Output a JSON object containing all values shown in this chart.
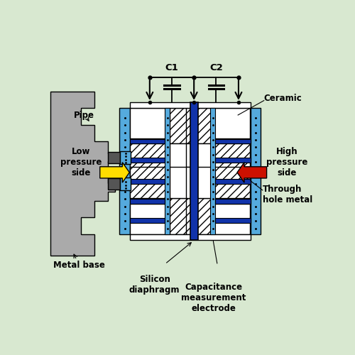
{
  "bg_color": "#d8e8d0",
  "white": "#ffffff",
  "black": "#000000",
  "blue_light": "#55aadd",
  "blue_dark": "#1133aa",
  "gray_metal": "#aaaaaa",
  "gray_dark": "#555555",
  "gray_pipe": "#999999",
  "yellow": "#ffdd00",
  "red": "#cc1100",
  "label_c1": "C1",
  "label_c2": "C2",
  "label_pipe": "Pipe",
  "label_metal_base": "Metal base",
  "label_ceramic": "Ceramic",
  "label_silicon": "Silicon\ndiaphragm",
  "label_capacitance": "Capacitance\nmeasurement\nelectrode",
  "label_through_hole": "Through\nhole metal",
  "label_low": "Low\npressure\nside",
  "label_high": "High\npressure\nside"
}
